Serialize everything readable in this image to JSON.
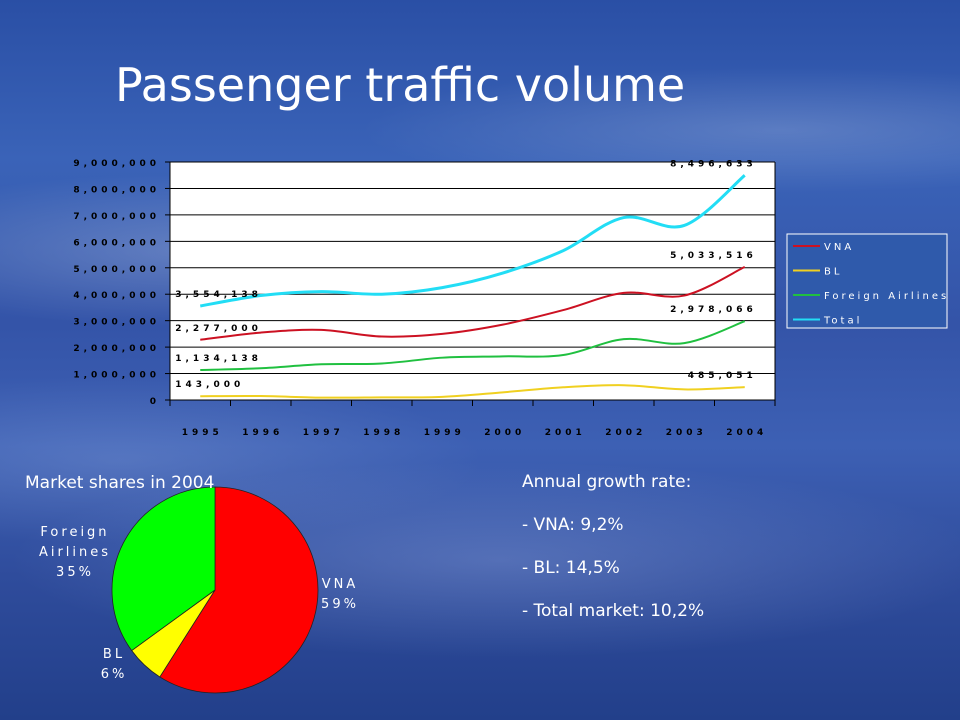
{
  "slide": {
    "title": "Passenger traffic volume",
    "pie_title": "Market shares in 2004",
    "growth_title": "Annual growth rate:",
    "growth_items": [
      "- VNA: 9,2%",
      "- BL: 14,5%",
      "- Total market: 10,2%"
    ]
  },
  "chart_data": [
    {
      "type": "line",
      "title": "",
      "x": [
        "1995",
        "1996",
        "1997",
        "1998",
        "1999",
        "2000",
        "2001",
        "2002",
        "2003",
        "2004"
      ],
      "ylim": [
        0,
        9000000
      ],
      "yticks": [
        "0",
        "1,000,000",
        "2,000,000",
        "3,000,000",
        "4,000,000",
        "5,000,000",
        "6,000,000",
        "7,000,000",
        "8,000,000",
        "9,000,000"
      ],
      "grid": true,
      "legend": "right",
      "series": [
        {
          "name": "VNA",
          "color": "#cc1122",
          "values": [
            2277000,
            2550000,
            2650000,
            2400000,
            2500000,
            2850000,
            3400000,
            4050000,
            3950000,
            5033516
          ],
          "start_label": "2,277,000",
          "end_label": "5,033,516"
        },
        {
          "name": "BL",
          "color": "#f0d020",
          "values": [
            143000,
            150000,
            90000,
            100000,
            120000,
            290000,
            480000,
            560000,
            400000,
            485051
          ],
          "start_label": "143,000",
          "end_label": "485,051"
        },
        {
          "name": "Foreign Airlines",
          "color": "#20c040",
          "values": [
            1134138,
            1200000,
            1350000,
            1380000,
            1600000,
            1650000,
            1700000,
            2300000,
            2150000,
            2978066
          ],
          "start_label": "1,134,138",
          "end_label": "2,978,066"
        },
        {
          "name": "Total",
          "color": "#22ddf5",
          "values": [
            3554138,
            3950000,
            4100000,
            4000000,
            4250000,
            4800000,
            5650000,
            6900000,
            6600000,
            8496633
          ],
          "start_label": "3,554,138",
          "end_label": "8,496,633"
        }
      ]
    },
    {
      "type": "pie",
      "title": "Market shares in 2004",
      "slices": [
        {
          "name": "VNA",
          "percent": 59,
          "color": "#ff0000",
          "label_lines": [
            "VNA",
            "59%"
          ]
        },
        {
          "name": "BL",
          "percent": 6,
          "color": "#ffff00",
          "label_lines": [
            "BL",
            "6%"
          ]
        },
        {
          "name": "Foreign Airlines",
          "percent": 35,
          "color": "#00ff00",
          "label_lines": [
            "Foreign",
            "Airlines",
            "35%"
          ]
        }
      ]
    }
  ]
}
